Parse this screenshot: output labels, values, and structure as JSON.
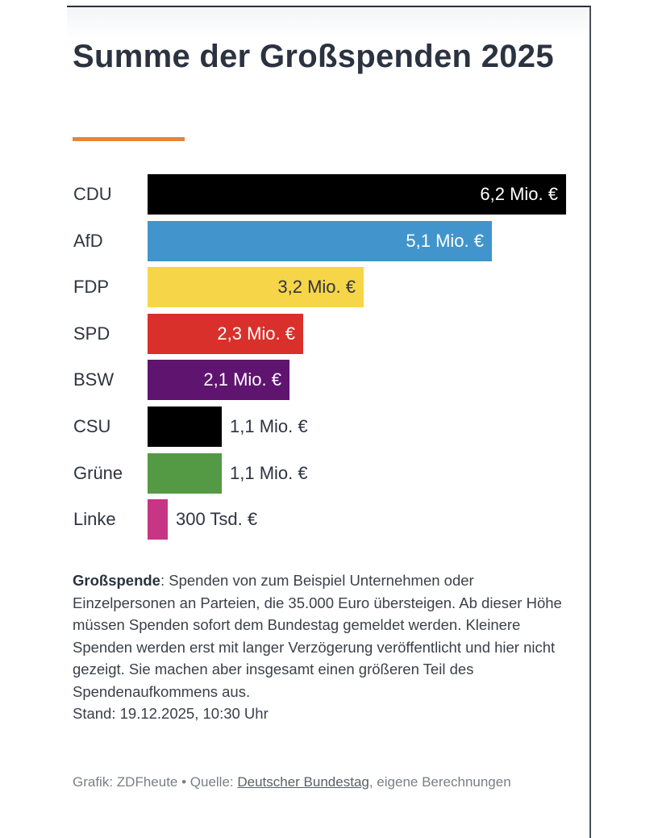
{
  "chart_data": {
    "type": "bar",
    "orientation": "horizontal",
    "title": "Summe der Großspenden 2025",
    "xlabel": "",
    "ylabel": "",
    "unit": "Mio. €",
    "xlim": [
      0,
      6.2
    ],
    "grid": false,
    "legend": "none",
    "categories": [
      "CDU",
      "AfD",
      "FDP",
      "SPD",
      "BSW",
      "CSU",
      "Grüne",
      "Linke"
    ],
    "values": [
      6.2,
      5.1,
      3.2,
      2.3,
      2.1,
      1.1,
      1.1,
      0.3
    ],
    "data_labels": [
      "6,2 Mio. €",
      "5,1 Mio. €",
      "3,2 Mio. €",
      "2,3 Mio. €",
      "2,1 Mio. €",
      "1,1 Mio. €",
      "1,1 Mio. €",
      "300 Tsd. €"
    ],
    "colors": [
      "#000000",
      "#4195cc",
      "#f7d548",
      "#d9302b",
      "#5f1470",
      "#000000",
      "#549a44",
      "#c73585"
    ],
    "label_colors": [
      "#ffffff",
      "#ffffff",
      "#2e3440",
      "#ffffff",
      "#ffffff",
      "#2e3440",
      "#2e3440",
      "#2e3440"
    ],
    "label_inside": [
      true,
      true,
      true,
      true,
      true,
      false,
      false,
      false
    ]
  },
  "header": {
    "title": "Summe der Großspenden 2025",
    "accent_color": "#e8843a"
  },
  "note": {
    "term": "Großspende",
    "text": ": Spenden von zum Beispiel Unternehmen oder Einzelpersonen an Parteien, die 35.000 Euro übersteigen. Ab dieser Höhe müssen Spenden sofort dem Bundestag gemeldet werden. Kleinere Spenden werden erst mit langer Verzögerung veröffentlicht und hier nicht gezeigt. Sie machen aber insgesamt einen größeren Teil des Spendenaufkommens aus.",
    "stand": "Stand: 19.12.2025, 10:30 Uhr"
  },
  "source": {
    "prefix": "Grafik: ZDFheute • Quelle: ",
    "link_text": "Deutscher Bundestag",
    "suffix": ", eigene Berechnungen"
  }
}
